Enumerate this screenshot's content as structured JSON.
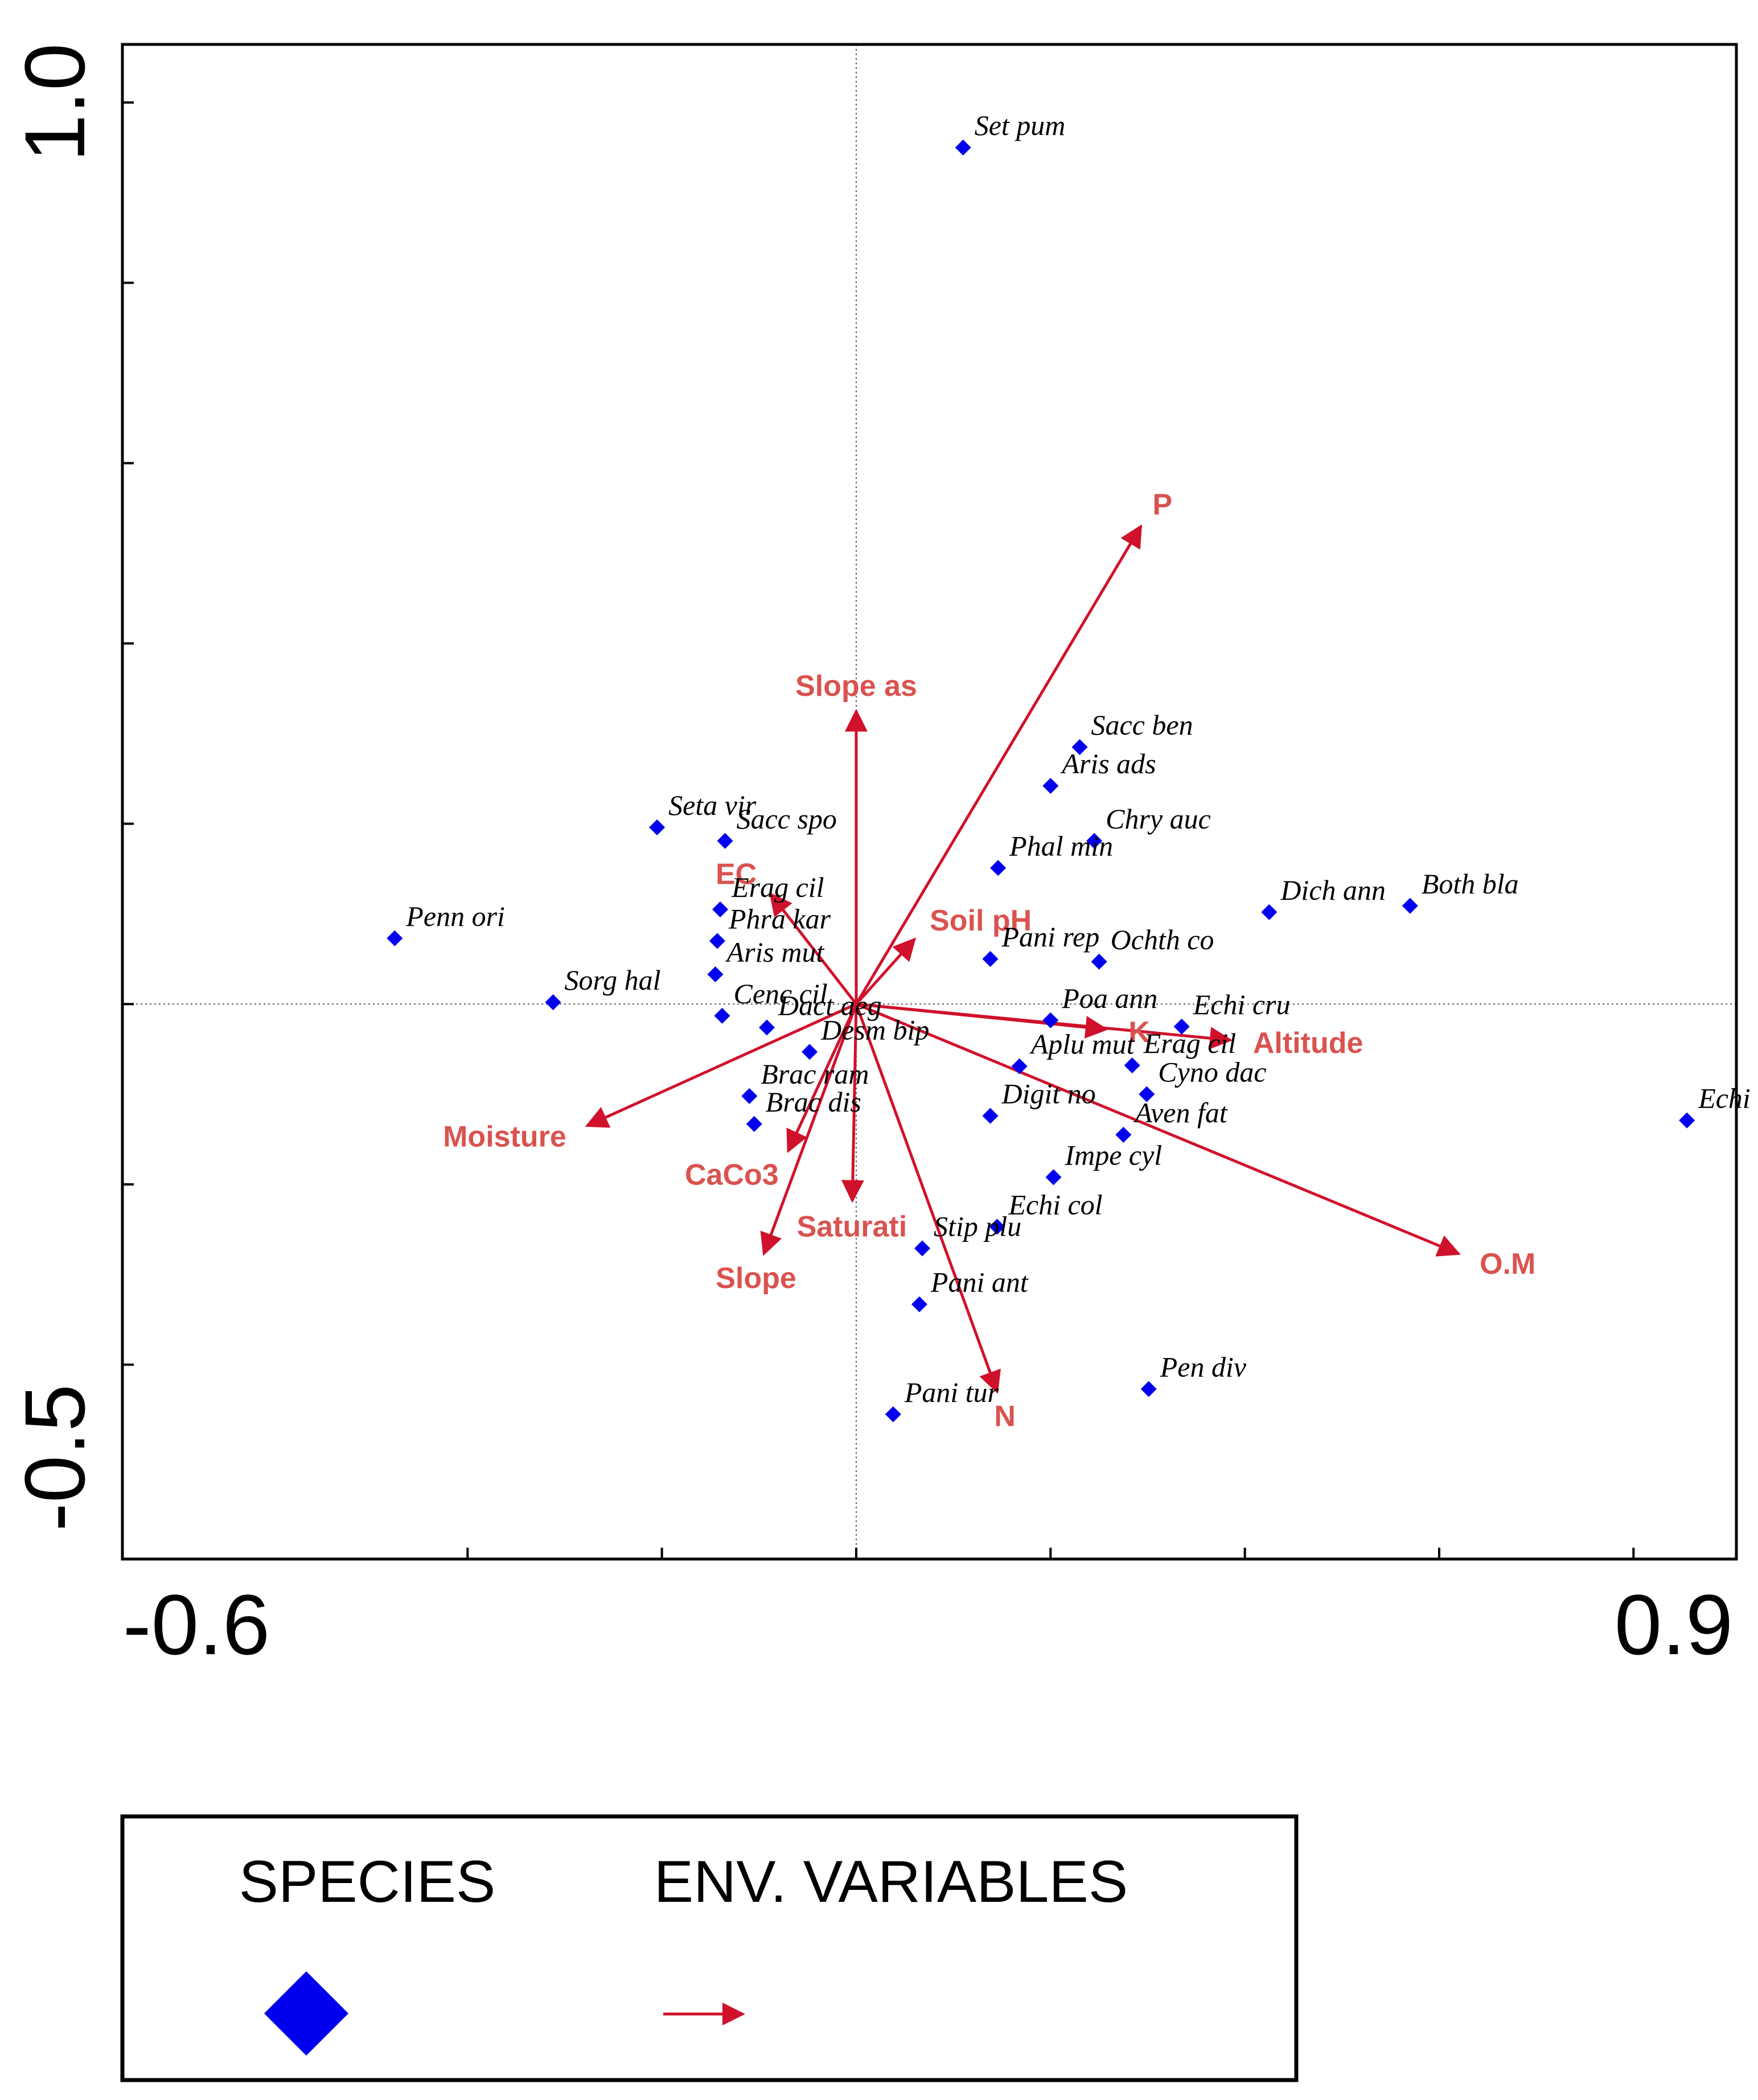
{
  "chart_data": {
    "type": "scatter",
    "subtype": "CCA biplot",
    "title": "",
    "xlim": [
      -0.6,
      0.9
    ],
    "ylim": [
      -0.5,
      1.0
    ],
    "x_tick_labels": [
      "-0.6",
      "0.9"
    ],
    "y_tick_labels": [
      "1.0",
      "-0.5"
    ],
    "colors": {
      "species": "#0000ee",
      "env": "#d0112b",
      "env_label": "#d9534f"
    },
    "species": [
      {
        "name": "Set pum",
        "x": 0.11,
        "y": 0.95
      },
      {
        "name": "Sacc ben",
        "x": 0.23,
        "y": 0.285
      },
      {
        "name": "Aris ads",
        "x": 0.2,
        "y": 0.242
      },
      {
        "name": "Chry auc",
        "x": 0.245,
        "y": 0.181
      },
      {
        "name": "Seta vir",
        "x": -0.205,
        "y": 0.196
      },
      {
        "name": "Sacc spo",
        "x": -0.135,
        "y": 0.181
      },
      {
        "name": "Phal min",
        "x": 0.146,
        "y": 0.151
      },
      {
        "name": "Dich ann",
        "x": 0.425,
        "y": 0.102
      },
      {
        "name": "Both bla",
        "x": 0.57,
        "y": 0.109
      },
      {
        "name": "Penn ori",
        "x": -0.475,
        "y": 0.073
      },
      {
        "name": "Erag cil",
        "x": -0.14,
        "y": 0.105
      },
      {
        "name": "Phra kar",
        "x": -0.143,
        "y": 0.07
      },
      {
        "name": "Aris mut",
        "x": -0.145,
        "y": 0.033
      },
      {
        "name": "Pani rep",
        "x": 0.138,
        "y": 0.05
      },
      {
        "name": "Ochth co",
        "x": 0.25,
        "y": 0.047
      },
      {
        "name": "Sorg hal",
        "x": -0.312,
        "y": 0.002
      },
      {
        "name": "Cenc cil",
        "x": -0.138,
        "y": -0.013
      },
      {
        "name": "Dact aeg",
        "x": -0.092,
        "y": -0.026
      },
      {
        "name": "Poa ann",
        "x": 0.2,
        "y": -0.018
      },
      {
        "name": "Echi cru",
        "x": 0.335,
        "y": -0.025
      },
      {
        "name": "Desm bip",
        "x": -0.048,
        "y": -0.053
      },
      {
        "name": "Aplu mut",
        "x": 0.168,
        "y": -0.069
      },
      {
        "name": "Erag cil",
        "x": 0.284,
        "y": -0.068
      },
      {
        "name": "Brac ram",
        "x": -0.11,
        "y": -0.102
      },
      {
        "name": "Cyno dac",
        "x": 0.299,
        "y": -0.1
      },
      {
        "name": "Brac dis",
        "x": -0.105,
        "y": -0.133
      },
      {
        "name": "Digit no",
        "x": 0.138,
        "y": -0.124
      },
      {
        "name": "Aven fat",
        "x": 0.275,
        "y": -0.145
      },
      {
        "name": "Echi sta",
        "x": 0.855,
        "y": -0.129
      },
      {
        "name": "Impe cyl",
        "x": 0.203,
        "y": -0.192
      },
      {
        "name": "Echi col",
        "x": 0.145,
        "y": -0.247
      },
      {
        "name": "Stip plu",
        "x": 0.068,
        "y": -0.271
      },
      {
        "name": "Pani ant",
        "x": 0.065,
        "y": -0.333
      },
      {
        "name": "Pen div",
        "x": 0.301,
        "y": -0.427
      },
      {
        "name": "Pani tur",
        "x": 0.038,
        "y": -0.455
      }
    ],
    "env_variables": [
      {
        "name": "P",
        "x": 0.293,
        "y": 0.53
      },
      {
        "name": "Slope as",
        "x": 0.0,
        "y": 0.325
      },
      {
        "name": "EC",
        "x": -0.088,
        "y": 0.122
      },
      {
        "name": "Soil pH",
        "x": 0.06,
        "y": 0.072
      },
      {
        "name": "K",
        "x": 0.257,
        "y": -0.028
      },
      {
        "name": "Altitude",
        "x": 0.385,
        "y": -0.04
      },
      {
        "name": "O.M",
        "x": 0.62,
        "y": -0.277
      },
      {
        "name": "Moisture",
        "x": -0.277,
        "y": -0.135
      },
      {
        "name": "CaCo3",
        "x": -0.07,
        "y": -0.163
      },
      {
        "name": "Saturati",
        "x": -0.004,
        "y": -0.218
      },
      {
        "name": "Slope",
        "x": -0.095,
        "y": -0.277
      },
      {
        "name": "N",
        "x": 0.145,
        "y": -0.43
      }
    ]
  },
  "legend": {
    "species_label": "SPECIES",
    "env_label": "ENV. VARIABLES",
    "species_icon": "blue-diamond",
    "env_icon": "red-arrow"
  }
}
